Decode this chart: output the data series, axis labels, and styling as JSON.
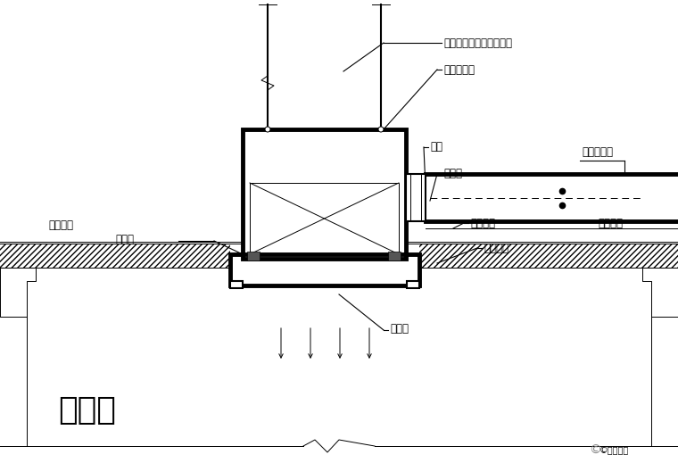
{
  "bg_color": "#ffffff",
  "line_color": "#000000",
  "labels": {
    "silk_hanger": "丝杆吊挂，可调节高度型",
    "hepa": "高效过滤器",
    "flex_conn": "软接",
    "air_outlet": "进风口",
    "volume_damper": "风量调节阀",
    "fixed_bolt1": "固定螺钉",
    "fixed_bolt2": "固定螺钉",
    "sealant": "打密封胶",
    "purify_panel": "净化板",
    "tech_layer": "技术夹层",
    "diffuser": "散流板",
    "clean_room": "洁净室",
    "watermark": "©科技建工"
  },
  "fig_w": 7.6,
  "fig_h": 5.19,
  "dpi": 100
}
